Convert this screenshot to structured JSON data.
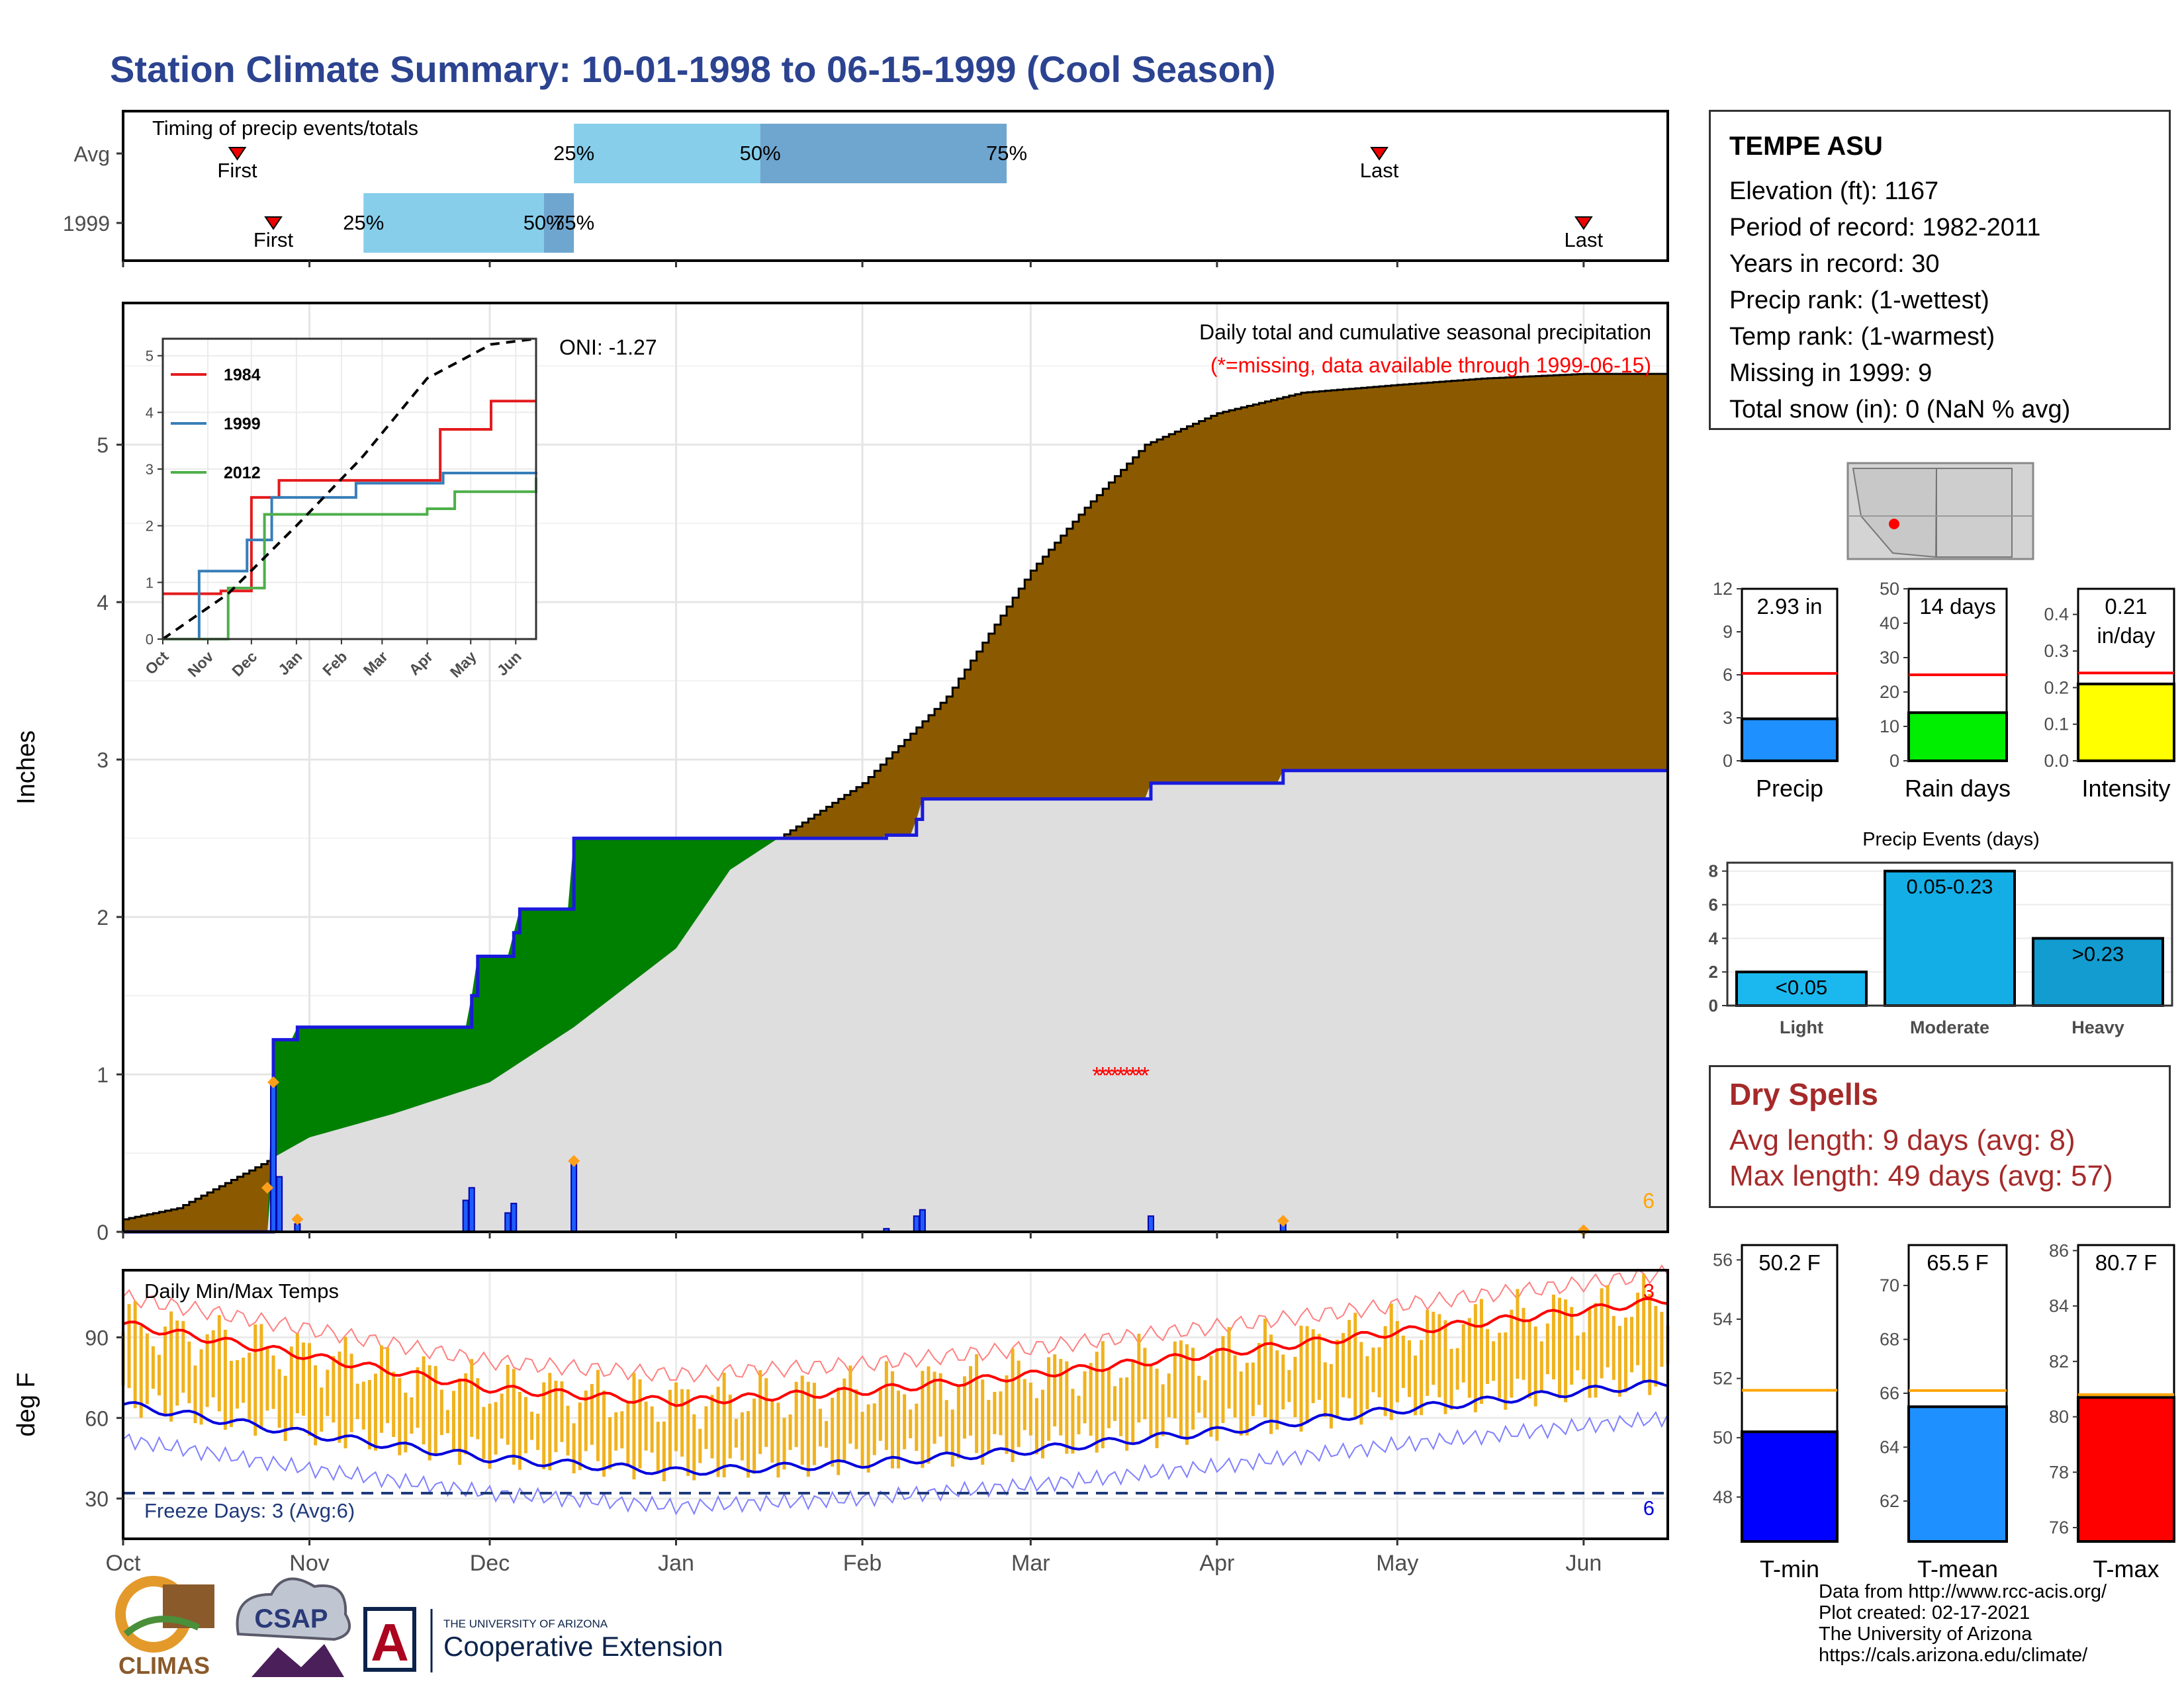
{
  "title": "Station Climate Summary: 10-01-1998 to 06-15-1999 (Cool Season)",
  "timing": {
    "heading": "Timing of precip events/totals",
    "rows": [
      {
        "label": "Avg",
        "first": "First",
        "last": "Last",
        "p25": "25%",
        "p50": "50%",
        "p75": "75%"
      },
      {
        "label": "1999",
        "first": "First",
        "last": "Last",
        "p25": "25%",
        "p50": "50%",
        "p75": "75%"
      }
    ]
  },
  "station": {
    "name": "TEMPE ASU",
    "lines": [
      "Elevation (ft): 1167",
      "Period of record: 1982-2011",
      "Years in record: 30",
      "Precip rank:  (1-wettest)",
      "Temp rank:  (1-warmest)",
      "Missing in 1999: 9",
      "Total snow (in): 0 (NaN % avg)"
    ]
  },
  "precip_panel": {
    "ylabel": "Inches",
    "heading": "Daily total and cumulative seasonal precipitation",
    "missing_note": "(*=missing, data available through 1999-06-15)",
    "oni": "ONI: -1.27",
    "corner_count": "6",
    "yticks": [
      "0",
      "1",
      "2",
      "3",
      "4",
      "5"
    ]
  },
  "inset": {
    "legend": [
      "1984",
      "1999",
      "2012"
    ],
    "yticks": [
      "0",
      "1",
      "2",
      "3",
      "4",
      "5"
    ],
    "xticks": [
      "Oct",
      "Nov",
      "Dec",
      "Jan",
      "Feb",
      "Mar",
      "Apr",
      "May",
      "Jun"
    ]
  },
  "temp_panel": {
    "ylabel": "deg F",
    "heading": "Daily Min/Max Temps",
    "freeze": "Freeze Days: 3 (Avg:6)",
    "max_count": "3",
    "min_count": "6",
    "yticks": [
      "30",
      "60",
      "90"
    ],
    "xticks": [
      "Oct",
      "Nov",
      "Dec",
      "Jan",
      "Feb",
      "Mar",
      "Apr",
      "May",
      "Jun"
    ]
  },
  "mini_bars": [
    {
      "label": "Precip",
      "value_text": "2.93 in",
      "yticks": [
        "0",
        "3",
        "6",
        "9",
        "12"
      ],
      "color": "#1e90ff"
    },
    {
      "label": "Rain days",
      "value_text": "14 days",
      "yticks": [
        "0",
        "10",
        "20",
        "30",
        "40",
        "50"
      ],
      "color": "#00ee00"
    },
    {
      "label": "Intensity",
      "value_text": "0.21",
      "value_text2": "in/day",
      "yticks": [
        "0.0",
        "0.1",
        "0.2",
        "0.3",
        "0.4"
      ],
      "color": "#ffff00"
    }
  ],
  "precip_events": {
    "title": "Precip Events (days)",
    "yticks": [
      "0",
      "2",
      "4",
      "6",
      "8"
    ],
    "bars": [
      {
        "name": "Light",
        "label": "<0.05",
        "color": "#1ab8ee"
      },
      {
        "name": "Moderate",
        "label": "0.05-0.23",
        "color": "#14aee6"
      },
      {
        "name": "Heavy",
        "label": ">0.23",
        "color": "#129cd0"
      }
    ]
  },
  "dry_spells": {
    "title": "Dry Spells",
    "avg": "Avg length: 9 days (avg: 8)",
    "max": "Max length: 49 days (avg: 57)"
  },
  "temp_bars": [
    {
      "label": "T-min",
      "value_text": "50.2 F",
      "yticks": [
        "48",
        "50",
        "52",
        "54",
        "56"
      ],
      "color": "#0000ff"
    },
    {
      "label": "T-mean",
      "value_text": "65.5 F",
      "yticks": [
        "62",
        "64",
        "66",
        "68",
        "70"
      ],
      "color": "#1e90ff"
    },
    {
      "label": "T-max",
      "value_text": "80.7 F",
      "yticks": [
        "76",
        "78",
        "80",
        "82",
        "84",
        "86"
      ],
      "color": "#ff0000"
    }
  ],
  "credits": [
    "Data from http://www.rcc-acis.org/",
    "Plot created: 02-17-2021",
    "The University of Arizona",
    "https://cals.arizona.edu/climate/"
  ],
  "logos": {
    "climas": "CLIMAS",
    "csap": "CSAP",
    "ua_small": "THE UNIVERSITY OF ARIZONA",
    "ua_big": "Cooperative Extension",
    "ua_letter": "A"
  },
  "chart_data": [
    {
      "type": "bar",
      "title": "Timing of precip events/totals",
      "categories": [
        "Avg",
        "1999"
      ],
      "series": [
        {
          "name": "25%",
          "values": [
            "1998-12-15",
            "1998-11-10"
          ]
        },
        {
          "name": "50%",
          "values": [
            "1999-01-15",
            "1998-12-10"
          ]
        },
        {
          "name": "75%",
          "values": [
            "1999-02-25",
            "1998-12-15"
          ]
        },
        {
          "name": "First",
          "values": [
            "1998-10-20",
            "1998-10-26"
          ]
        },
        {
          "name": "Last",
          "values": [
            "1999-04-28",
            "1999-06-01"
          ]
        }
      ],
      "xlim": [
        "1998-10-01",
        "1999-06-15"
      ]
    },
    {
      "type": "area",
      "title": "Daily total and cumulative seasonal precipitation",
      "ylabel": "Inches",
      "ylim": [
        0,
        5.9
      ],
      "xlim": [
        "1998-10-01",
        "1999-06-15"
      ],
      "x_ticks": [
        "Oct",
        "Nov",
        "Dec",
        "Jan",
        "Feb",
        "Mar",
        "Apr",
        "May",
        "Jun"
      ],
      "series": [
        {
          "values": [
            [
              "1998-10-01",
              0.08
            ],
            [
              "1998-10-10",
              0.15
            ],
            [
              "1998-10-20",
              0.35
            ],
            [
              "1998-10-25",
              0.45
            ],
            [
              "1998-11-01",
              0.6
            ],
            [
              "1998-11-15",
              0.75
            ],
            [
              "1998-12-01",
              0.95
            ],
            [
              "1998-12-15",
              1.3
            ],
            [
              "1999-01-01",
              1.8
            ],
            [
              "1999-01-10",
              2.3
            ],
            [
              "1999-01-20",
              2.55
            ],
            [
              "1999-02-01",
              2.85
            ],
            [
              "1999-02-15",
              3.4
            ],
            [
              "1999-03-01",
              4.2
            ],
            [
              "1999-03-10",
              4.6
            ],
            [
              "1999-03-20",
              5.0
            ],
            [
              "1999-04-01",
              5.2
            ],
            [
              "1999-04-15",
              5.33
            ],
            [
              "1999-05-01",
              5.38
            ],
            [
              "1999-05-15",
              5.42
            ],
            [
              "1999-06-01",
              5.45
            ],
            [
              "1999-06-15",
              5.45
            ]
          ]
        },
        {
          "name": "1999",
          "values": [
            [
              "1998-10-01",
              0
            ],
            [
              "1998-10-25",
              0
            ],
            [
              "1998-10-26",
              1.22
            ],
            [
              "1998-10-30",
              1.3
            ],
            [
              "1998-11-27",
              1.3
            ],
            [
              "1998-11-28",
              1.5
            ],
            [
              "1998-11-29",
              1.75
            ],
            [
              "1998-12-05",
              1.9
            ],
            [
              "1998-12-06",
              2.05
            ],
            [
              "1998-12-15",
              2.5
            ],
            [
              "1999-02-05",
              2.52
            ],
            [
              "1999-02-10",
              2.62
            ],
            [
              "1999-02-11",
              2.75
            ],
            [
              "1999-03-21",
              2.85
            ],
            [
              "1999-04-12",
              2.93
            ],
            [
              "1999-06-15",
              2.93
            ]
          ]
        }
      ],
      "daily_bars": [
        [
          "1998-10-26",
          0.95
        ],
        [
          "1998-10-27",
          0.35
        ],
        [
          "1998-10-30",
          0.05
        ],
        [
          "1998-11-27",
          0.2
        ],
        [
          "1998-11-28",
          0.28
        ],
        [
          "1998-12-04",
          0.12
        ],
        [
          "1998-12-05",
          0.18
        ],
        [
          "1998-12-15",
          0.45
        ],
        [
          "1999-02-05",
          0.02
        ],
        [
          "1999-02-10",
          0.1
        ],
        [
          "1999-02-11",
          0.14
        ],
        [
          "1999-03-21",
          0.1
        ],
        [
          "1999-04-12",
          0.06
        ]
      ],
      "missing_days": [
        "1999-03-12",
        "1999-03-13",
        "1999-03-14",
        "1999-03-15",
        "1999-03-16",
        "1999-03-17",
        "1999-03-18",
        "1999-03-19",
        "1999-03-20"
      ]
    },
    {
      "type": "line",
      "ylim": [
        0,
        5.3
      ],
      "x_ticks": [
        "Oct",
        "Nov",
        "Dec",
        "Jan",
        "Feb",
        "Mar",
        "Apr",
        "May",
        "Jun"
      ],
      "series": [
        {
          "name": "1984",
          "values": [
            [
              "1998-10-01",
              0.8
            ],
            [
              "1998-11-10",
              0.85
            ],
            [
              "1998-12-01",
              2.5
            ],
            [
              "1998-12-20",
              2.8
            ],
            [
              "1999-04-01",
              2.8
            ],
            [
              "1999-04-10",
              3.7
            ],
            [
              "1999-05-15",
              4.2
            ],
            [
              "1999-06-15",
              4.2
            ]
          ]
        },
        {
          "name": "1999",
          "values": [
            [
              "1998-10-01",
              0.0
            ],
            [
              "1998-10-26",
              1.2
            ],
            [
              "1998-11-28",
              1.75
            ],
            [
              "1998-12-15",
              2.5
            ],
            [
              "1999-02-11",
              2.75
            ],
            [
              "1999-04-12",
              2.93
            ],
            [
              "1999-06-15",
              2.95
            ]
          ]
        },
        {
          "name": "2012",
          "values": [
            [
              "1998-10-01",
              0.0
            ],
            [
              "1998-11-15",
              0.9
            ],
            [
              "1998-12-10",
              2.2
            ],
            [
              "1999-04-01",
              2.3
            ],
            [
              "1999-04-20",
              2.6
            ],
            [
              "1999-06-15",
              2.85
            ]
          ]
        },
        {
          "values": [
            [
              "1998-10-01",
              0.0
            ],
            [
              "1998-11-15",
              0.8
            ],
            [
              "1999-01-01",
              2.0
            ],
            [
              "1999-02-15",
              3.2
            ],
            [
              "1999-04-01",
              4.6
            ],
            [
              "1999-05-15",
              5.2
            ],
            [
              "1999-06-15",
              5.3
            ]
          ]
        }
      ]
    },
    {
      "type": "bar",
      "title": "Daily Min/Max Temps",
      "ylabel": "deg F",
      "ylim": [
        15,
        115
      ],
      "x_ticks": [
        "Oct",
        "Nov",
        "Dec",
        "Jan",
        "Feb",
        "Mar",
        "Apr",
        "May",
        "Jun"
      ],
      "series": [
        {
          "name": "avg max",
          "values": [
            [
              "1998-10-01",
              95
            ],
            [
              "1998-11-01",
              83
            ],
            [
              "1998-12-01",
              71
            ],
            [
              "1999-01-01",
              66
            ],
            [
              "1999-02-01",
              70
            ],
            [
              "1999-03-01",
              76
            ],
            [
              "1999-04-01",
              84
            ],
            [
              "1999-05-01",
              92
            ],
            [
              "1999-06-01",
              100
            ],
            [
              "1999-06-15",
              104
            ]
          ]
        },
        {
          "name": "avg min",
          "values": [
            [
              "1998-10-01",
              65
            ],
            [
              "1998-11-01",
              54
            ],
            [
              "1998-12-01",
              45
            ],
            [
              "1999-01-01",
              40
            ],
            [
              "1999-02-01",
              43
            ],
            [
              "1999-03-01",
              48
            ],
            [
              "1999-04-01",
              55
            ],
            [
              "1999-05-01",
              63
            ],
            [
              "1999-06-01",
              70
            ],
            [
              "1999-06-15",
              73
            ]
          ]
        }
      ],
      "freeze_line": 32
    },
    {
      "type": "bar",
      "categories": [
        "Precip"
      ],
      "values": [
        2.93
      ],
      "normal": 6.1,
      "ylim": [
        0,
        12
      ]
    },
    {
      "type": "bar",
      "categories": [
        "Rain days"
      ],
      "values": [
        14
      ],
      "normal": 25,
      "ylim": [
        0,
        50
      ]
    },
    {
      "type": "bar",
      "categories": [
        "Intensity"
      ],
      "values": [
        0.21
      ],
      "normal": 0.24,
      "ylim": [
        0,
        0.47
      ]
    },
    {
      "type": "bar",
      "title": "Precip Events (days)",
      "categories": [
        "Light",
        "Moderate",
        "Heavy"
      ],
      "values": [
        2,
        8,
        4
      ],
      "ylim": [
        0,
        8.5
      ]
    },
    {
      "type": "bar",
      "categories": [
        "T-min"
      ],
      "values": [
        50.2
      ],
      "normal": 51.6,
      "ylim": [
        46.5,
        56.5
      ]
    },
    {
      "type": "bar",
      "categories": [
        "T-mean"
      ],
      "values": [
        65.5
      ],
      "normal": 66.1,
      "ylim": [
        60.5,
        71.5
      ]
    },
    {
      "type": "bar",
      "categories": [
        "T-max"
      ],
      "values": [
        80.7
      ],
      "normal": 80.8,
      "ylim": [
        75.5,
        86.2
      ]
    }
  ]
}
